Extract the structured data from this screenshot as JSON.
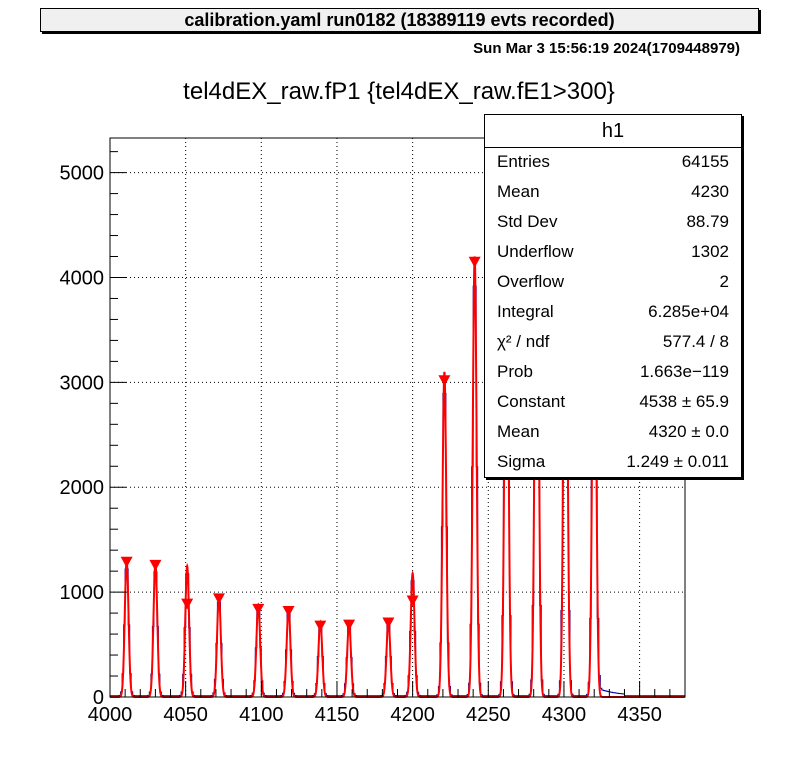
{
  "canvas_title": "calibration.yaml  run0182 (18389119 evts recorded)",
  "datetime": "Sun Mar  3 15:56:19 2024(1709448979)",
  "stats_box": {
    "title": "h1",
    "rows": [
      {
        "label": "Entries",
        "value": "64155"
      },
      {
        "label": "Mean",
        "value": "4230"
      },
      {
        "label": "Std Dev",
        "value": "88.79"
      },
      {
        "label": "Underflow",
        "value": "1302"
      },
      {
        "label": "Overflow",
        "value": "2"
      },
      {
        "label": "Integral",
        "value": "6.285e+04"
      },
      {
        "label": "χ² / ndf",
        "value": "577.4 / 8"
      },
      {
        "label": "Prob",
        "value": "1.663e−119"
      },
      {
        "label": "Constant",
        "value": "4538 ± 65.9"
      },
      {
        "label": "Mean",
        "value": "4320 ± 0.0"
      },
      {
        "label": "Sigma",
        "value": "1.249 ± 0.011"
      }
    ]
  },
  "colors": {
    "histogram": "#000099",
    "fit": "#ff0000",
    "markers": "#ff0000",
    "grid": "#000000"
  },
  "chart_data": {
    "type": "line",
    "title": "tel4dEX_raw.fP1 {tel4dEX_raw.fE1>300}",
    "xlabel": "",
    "ylabel": "",
    "xlim": [
      4000,
      4380
    ],
    "ylim": [
      0,
      5330
    ],
    "grid": true,
    "legend": "top-right",
    "x_ticks": [
      4000,
      4050,
      4100,
      4150,
      4200,
      4250,
      4300,
      4350
    ],
    "y_ticks": [
      0,
      1000,
      2000,
      3000,
      4000,
      5000
    ],
    "fit_sigma": 1.249,
    "peaks": [
      {
        "x": 4011,
        "height": 1300
      },
      {
        "x": 4030,
        "height": 1270
      },
      {
        "x": 4051,
        "height": 1250
      },
      {
        "x": 4072,
        "height": 960
      },
      {
        "x": 4098,
        "height": 880
      },
      {
        "x": 4118,
        "height": 840
      },
      {
        "x": 4139,
        "height": 720
      },
      {
        "x": 4158,
        "height": 700
      },
      {
        "x": 4184,
        "height": 720
      },
      {
        "x": 4200,
        "height": 1180
      },
      {
        "x": 4221,
        "height": 3100
      },
      {
        "x": 4241,
        "height": 4200
      },
      {
        "x": 4262,
        "height": 4700
      },
      {
        "x": 4282,
        "height": 5300
      },
      {
        "x": 4301,
        "height": 5000
      },
      {
        "x": 4320,
        "height": 4538
      }
    ],
    "markers": [
      {
        "x": 4011,
        "y": 1290
      },
      {
        "x": 4030,
        "y": 1260
      },
      {
        "x": 4051,
        "y": 890
      },
      {
        "x": 4072,
        "y": 940
      },
      {
        "x": 4098,
        "y": 840
      },
      {
        "x": 4118,
        "y": 820
      },
      {
        "x": 4139,
        "y": 680
      },
      {
        "x": 4158,
        "y": 690
      },
      {
        "x": 4184,
        "y": 710
      },
      {
        "x": 4200,
        "y": 920
      },
      {
        "x": 4221,
        "y": 3020
      },
      {
        "x": 4241,
        "y": 4150
      }
    ]
  }
}
